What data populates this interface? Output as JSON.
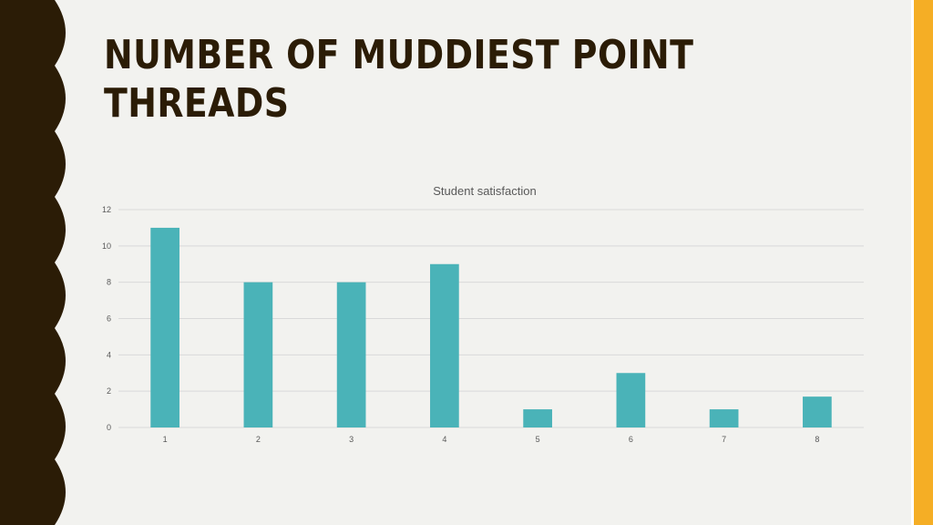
{
  "slide": {
    "title": "NUMBER OF MUDDIEST POINT THREADS"
  },
  "colors": {
    "background": "#f2f2ef",
    "left_band": "#2b1c06",
    "right_accent": "#f5ae25",
    "bar": "#4ab3b8",
    "gridline": "#d9d9d9",
    "title_text": "#2b1c06"
  },
  "chart_data": {
    "type": "bar",
    "title": "Student satisfaction",
    "xlabel": "",
    "ylabel": "",
    "categories": [
      "1",
      "2",
      "3",
      "4",
      "5",
      "6",
      "7",
      "8"
    ],
    "values": [
      11,
      8,
      8,
      9,
      1,
      3,
      1,
      1.7
    ],
    "ylim": [
      0,
      12
    ],
    "yticks": [
      0,
      2,
      4,
      6,
      8,
      10,
      12
    ],
    "grid": true,
    "legend": "none"
  }
}
